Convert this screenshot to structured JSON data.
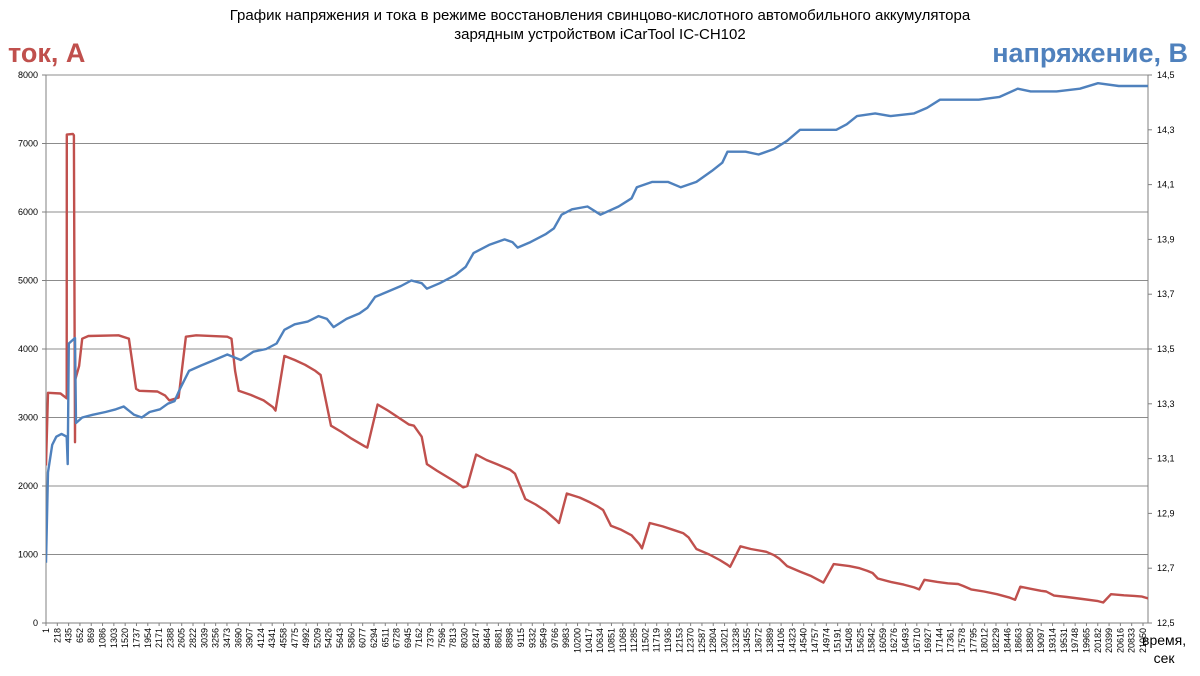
{
  "chart_data": {
    "type": "line",
    "title": [
      "График напряжения и тока в режиме восстановления свинцово-кислотного автомобильного аккумулятора",
      "зарядным устройством iCarTool IC-CH102"
    ],
    "left_axis_label": "ток, А",
    "right_axis_label": "напряжение, В",
    "x_axis_label": [
      "время,",
      "сек"
    ],
    "x_range": [
      1,
      21264
    ],
    "y_left_range": [
      0,
      8000
    ],
    "y_left_ticks": [
      "0",
      "1000",
      "2000",
      "3000",
      "4000",
      "5000",
      "6000",
      "7000",
      "8000"
    ],
    "y_right_range": [
      12.5,
      14.5
    ],
    "y_right_ticks": [
      "12,5",
      "12,7",
      "12,9",
      "13,1",
      "13,3",
      "13,5",
      "13,7",
      "13,9",
      "14,1",
      "14,3",
      "14,5"
    ],
    "x_ticks": [
      "1",
      "218",
      "435",
      "652",
      "869",
      "1086",
      "1303",
      "1520",
      "1737",
      "1954",
      "2171",
      "2388",
      "2605",
      "2822",
      "3039",
      "3256",
      "3473",
      "3690",
      "3907",
      "4124",
      "4341",
      "4558",
      "4775",
      "4992",
      "5209",
      "5426",
      "5643",
      "5860",
      "6077",
      "6294",
      "6511",
      "6728",
      "6945",
      "7162",
      "7379",
      "7596",
      "7813",
      "8030",
      "8247",
      "8464",
      "8681",
      "8898",
      "9115",
      "9332",
      "9549",
      "9766",
      "9983",
      "10200",
      "10417",
      "10634",
      "10851",
      "11068",
      "11285",
      "11502",
      "11719",
      "11936",
      "12153",
      "12370",
      "12587",
      "12804",
      "13021",
      "13238",
      "13455",
      "13672",
      "13889",
      "14106",
      "14323",
      "14540",
      "14757",
      "14974",
      "15191",
      "15408",
      "15625",
      "15842",
      "16059",
      "16276",
      "16493",
      "16710",
      "16927",
      "17144",
      "17361",
      "17578",
      "17795",
      "18012",
      "18229",
      "18446",
      "18663",
      "18880",
      "19097",
      "19314",
      "19531",
      "19748",
      "19965",
      "20182",
      "20399",
      "20616",
      "20833",
      "21050"
    ],
    "grid": "horizontal",
    "colors": {
      "current": "#c0504d",
      "voltage": "#4f81bd",
      "grid": "#8c8c8c",
      "axis": "#808080"
    },
    "series": [
      {
        "axis": "left",
        "points": [
          [
            1,
            2300
          ],
          [
            40,
            3360
          ],
          [
            280,
            3350
          ],
          [
            400,
            3280
          ],
          [
            402,
            7130
          ],
          [
            520,
            7140
          ],
          [
            540,
            7120
          ],
          [
            560,
            2640
          ],
          [
            565,
            3550
          ],
          [
            640,
            3750
          ],
          [
            700,
            4150
          ],
          [
            820,
            4190
          ],
          [
            1400,
            4200
          ],
          [
            1600,
            4150
          ],
          [
            1740,
            3420
          ],
          [
            1800,
            3390
          ],
          [
            2150,
            3380
          ],
          [
            2300,
            3320
          ],
          [
            2380,
            3250
          ],
          [
            2560,
            3290
          ],
          [
            2700,
            4180
          ],
          [
            2900,
            4200
          ],
          [
            3500,
            4180
          ],
          [
            3580,
            4150
          ],
          [
            3650,
            3680
          ],
          [
            3720,
            3390
          ],
          [
            3950,
            3330
          ],
          [
            4200,
            3250
          ],
          [
            4380,
            3150
          ],
          [
            4430,
            3100
          ],
          [
            4600,
            3900
          ],
          [
            4800,
            3840
          ],
          [
            5000,
            3770
          ],
          [
            5200,
            3680
          ],
          [
            5300,
            3620
          ],
          [
            5500,
            2880
          ],
          [
            5700,
            2790
          ],
          [
            5900,
            2690
          ],
          [
            6150,
            2580
          ],
          [
            6200,
            2560
          ],
          [
            6400,
            3190
          ],
          [
            6600,
            3100
          ],
          [
            6800,
            3000
          ],
          [
            7000,
            2900
          ],
          [
            7100,
            2880
          ],
          [
            7250,
            2720
          ],
          [
            7350,
            2320
          ],
          [
            7550,
            2220
          ],
          [
            7900,
            2060
          ],
          [
            8050,
            1980
          ],
          [
            8130,
            2000
          ],
          [
            8300,
            2460
          ],
          [
            8500,
            2380
          ],
          [
            8700,
            2320
          ],
          [
            8950,
            2240
          ],
          [
            9050,
            2180
          ],
          [
            9250,
            1810
          ],
          [
            9450,
            1730
          ],
          [
            9650,
            1630
          ],
          [
            9850,
            1500
          ],
          [
            9900,
            1460
          ],
          [
            10050,
            1890
          ],
          [
            10300,
            1830
          ],
          [
            10500,
            1760
          ],
          [
            10650,
            1700
          ],
          [
            10750,
            1650
          ],
          [
            10900,
            1420
          ],
          [
            11100,
            1360
          ],
          [
            11300,
            1280
          ],
          [
            11450,
            1150
          ],
          [
            11500,
            1090
          ],
          [
            11650,
            1460
          ],
          [
            11900,
            1410
          ],
          [
            12100,
            1360
          ],
          [
            12300,
            1310
          ],
          [
            12400,
            1250
          ],
          [
            12550,
            1080
          ],
          [
            12800,
            1000
          ],
          [
            13000,
            920
          ],
          [
            13150,
            850
          ],
          [
            13200,
            820
          ],
          [
            13400,
            1120
          ],
          [
            13600,
            1080
          ],
          [
            13900,
            1040
          ],
          [
            14050,
            990
          ],
          [
            14150,
            940
          ],
          [
            14300,
            830
          ],
          [
            14550,
            750
          ],
          [
            14750,
            690
          ],
          [
            14950,
            610
          ],
          [
            15000,
            590
          ],
          [
            15200,
            860
          ],
          [
            15500,
            830
          ],
          [
            15700,
            800
          ],
          [
            15850,
            760
          ],
          [
            15950,
            730
          ],
          [
            16050,
            650
          ],
          [
            16300,
            600
          ],
          [
            16550,
            560
          ],
          [
            16750,
            520
          ],
          [
            16850,
            490
          ],
          [
            16950,
            630
          ],
          [
            17200,
            600
          ],
          [
            17400,
            580
          ],
          [
            17600,
            570
          ],
          [
            17700,
            540
          ],
          [
            17850,
            490
          ],
          [
            18100,
            460
          ],
          [
            18350,
            420
          ],
          [
            18600,
            370
          ],
          [
            18700,
            340
          ],
          [
            18800,
            530
          ],
          [
            19000,
            500
          ],
          [
            19200,
            470
          ],
          [
            19300,
            460
          ],
          [
            19450,
            400
          ],
          [
            19700,
            380
          ],
          [
            20000,
            350
          ],
          [
            20300,
            320
          ],
          [
            20400,
            300
          ],
          [
            20550,
            420
          ],
          [
            20800,
            405
          ],
          [
            21000,
            395
          ],
          [
            21150,
            385
          ],
          [
            21300,
            350
          ],
          [
            21550,
            330
          ],
          [
            21850,
            300
          ],
          [
            22150,
            280
          ],
          [
            22250,
            260
          ]
        ]
      },
      {
        "axis": "right",
        "points": [
          [
            1,
            12.72
          ],
          [
            40,
            13.05
          ],
          [
            120,
            13.15
          ],
          [
            200,
            13.18
          ],
          [
            300,
            13.19
          ],
          [
            400,
            13.18
          ],
          [
            420,
            13.08
          ],
          [
            440,
            13.52
          ],
          [
            560,
            13.54
          ],
          [
            580,
            13.23
          ],
          [
            700,
            13.25
          ],
          [
            900,
            13.26
          ],
          [
            1150,
            13.27
          ],
          [
            1350,
            13.28
          ],
          [
            1500,
            13.29
          ],
          [
            1700,
            13.26
          ],
          [
            1850,
            13.25
          ],
          [
            2000,
            13.27
          ],
          [
            2200,
            13.28
          ],
          [
            2350,
            13.3
          ],
          [
            2480,
            13.31
          ],
          [
            2600,
            13.36
          ],
          [
            2760,
            13.42
          ],
          [
            3000,
            13.44
          ],
          [
            3250,
            13.46
          ],
          [
            3500,
            13.48
          ],
          [
            3760,
            13.46
          ],
          [
            4000,
            13.49
          ],
          [
            4250,
            13.5
          ],
          [
            4450,
            13.52
          ],
          [
            4600,
            13.57
          ],
          [
            4800,
            13.59
          ],
          [
            5050,
            13.6
          ],
          [
            5260,
            13.62
          ],
          [
            5420,
            13.61
          ],
          [
            5550,
            13.58
          ],
          [
            5800,
            13.61
          ],
          [
            6050,
            13.63
          ],
          [
            6200,
            13.65
          ],
          [
            6350,
            13.69
          ],
          [
            6600,
            13.71
          ],
          [
            6850,
            13.73
          ],
          [
            7050,
            13.75
          ],
          [
            7250,
            13.74
          ],
          [
            7350,
            13.72
          ],
          [
            7600,
            13.74
          ],
          [
            7900,
            13.77
          ],
          [
            8100,
            13.8
          ],
          [
            8250,
            13.85
          ],
          [
            8550,
            13.88
          ],
          [
            8850,
            13.9
          ],
          [
            9000,
            13.89
          ],
          [
            9100,
            13.87
          ],
          [
            9350,
            13.89
          ],
          [
            9650,
            13.92
          ],
          [
            9800,
            13.94
          ],
          [
            9950,
            13.99
          ],
          [
            10150,
            14.01
          ],
          [
            10450,
            14.02
          ],
          [
            10700,
            13.99
          ],
          [
            11050,
            14.02
          ],
          [
            11300,
            14.05
          ],
          [
            11400,
            14.09
          ],
          [
            11700,
            14.11
          ],
          [
            12000,
            14.11
          ],
          [
            12250,
            14.09
          ],
          [
            12550,
            14.11
          ],
          [
            12850,
            14.15
          ],
          [
            13050,
            14.18
          ],
          [
            13150,
            14.22
          ],
          [
            13500,
            14.22
          ],
          [
            13750,
            14.21
          ],
          [
            14050,
            14.23
          ],
          [
            14300,
            14.26
          ],
          [
            14550,
            14.3
          ],
          [
            14950,
            14.3
          ],
          [
            15250,
            14.3
          ],
          [
            15450,
            14.32
          ],
          [
            15650,
            14.35
          ],
          [
            16000,
            14.36
          ],
          [
            16300,
            14.35
          ],
          [
            16750,
            14.36
          ],
          [
            17000,
            14.38
          ],
          [
            17250,
            14.41
          ],
          [
            17600,
            14.41
          ],
          [
            18000,
            14.41
          ],
          [
            18400,
            14.42
          ],
          [
            18750,
            14.45
          ],
          [
            19000,
            14.44
          ],
          [
            19500,
            14.44
          ],
          [
            19950,
            14.45
          ],
          [
            20300,
            14.47
          ],
          [
            20700,
            14.46
          ],
          [
            21050,
            14.46
          ],
          [
            21300,
            14.46
          ],
          [
            21650,
            14.46
          ],
          [
            22250,
            14.46
          ]
        ]
      }
    ]
  }
}
